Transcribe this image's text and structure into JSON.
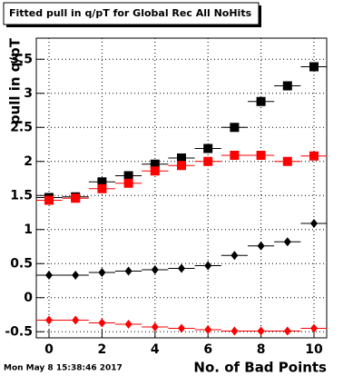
{
  "chart_data": {
    "type": "scatter",
    "title": "Fitted pull in q/pT for Global Rec All NoHits",
    "y_label": "pull in q/pT",
    "x_label": "No. of Bad Points",
    "timestamp": "Mon May  8 15:38:46 2017",
    "x": [
      0,
      1,
      2,
      3,
      4,
      5,
      6,
      7,
      8,
      9,
      10
    ],
    "xerr": 0.5,
    "series": [
      {
        "color": "#000000",
        "marker": "square",
        "values": [
          1.47,
          1.48,
          1.7,
          1.79,
          1.96,
          2.05,
          2.19,
          2.5,
          2.88,
          3.11,
          3.39
        ]
      },
      {
        "color": "#ff0000",
        "marker": "square",
        "values": [
          1.43,
          1.46,
          1.6,
          1.68,
          1.86,
          1.94,
          2.0,
          2.09,
          2.09,
          2.0,
          2.08
        ]
      },
      {
        "color": "#000000",
        "marker": "diamond",
        "values": [
          0.33,
          0.33,
          0.37,
          0.39,
          0.41,
          0.43,
          0.47,
          0.62,
          0.76,
          0.82,
          1.09
        ]
      },
      {
        "color": "#ff0000",
        "marker": "diamond",
        "values": [
          -0.33,
          -0.33,
          -0.37,
          -0.39,
          -0.43,
          -0.45,
          -0.47,
          -0.49,
          -0.49,
          -0.49,
          -0.45
        ]
      }
    ],
    "xlim": [
      -0.48,
      10.48
    ],
    "xticks": [
      0,
      2,
      4,
      6,
      8,
      10
    ],
    "ylim": [
      -0.59,
      3.81
    ],
    "yticks": [
      -0.5,
      0,
      0.5,
      1,
      1.5,
      2,
      2.5,
      3,
      3.5
    ],
    "grid": true
  }
}
